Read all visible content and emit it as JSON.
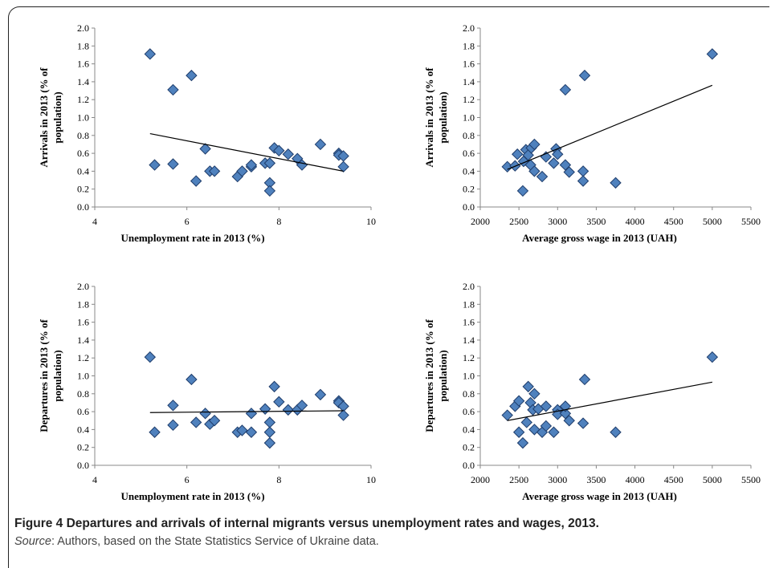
{
  "caption": {
    "figure_label": "Figure 4",
    "title": "Departures and arrivals of internal migrants versus unemployment rates and wages, 2013.",
    "source_label": "Source",
    "source_text": ": Authors, based on the State Statistics Service of Ukraine data."
  },
  "colors": {
    "marker_fill": "#4F81BD",
    "marker_stroke": "#1F3D6B",
    "trend": "#000000"
  },
  "chart_data": [
    {
      "type": "scatter",
      "title": "",
      "xlabel": "Unemployment rate in 2013 (%)",
      "ylabel": "Arrivals in 2013  (% of population)",
      "ylabel_lines": [
        "Arrivals in 2013  (% of",
        "population)"
      ],
      "xlim": [
        4,
        10
      ],
      "ylim": [
        0,
        2
      ],
      "xticks": [
        4,
        6,
        8,
        10
      ],
      "yticks": [
        0.0,
        0.2,
        0.4,
        0.6,
        0.8,
        1.0,
        1.2,
        1.4,
        1.6,
        1.8,
        2.0
      ],
      "grid": false,
      "trendline": {
        "x": [
          5.2,
          9.4
        ],
        "y": [
          0.82,
          0.4
        ]
      },
      "points": [
        [
          5.2,
          1.71
        ],
        [
          5.3,
          0.47
        ],
        [
          5.7,
          1.31
        ],
        [
          5.7,
          0.48
        ],
        [
          6.1,
          1.47
        ],
        [
          6.2,
          0.29
        ],
        [
          6.4,
          0.65
        ],
        [
          6.5,
          0.4
        ],
        [
          6.6,
          0.4
        ],
        [
          7.1,
          0.34
        ],
        [
          7.2,
          0.4
        ],
        [
          7.4,
          0.45
        ],
        [
          7.4,
          0.47
        ],
        [
          7.7,
          0.49
        ],
        [
          7.8,
          0.49
        ],
        [
          7.8,
          0.27
        ],
        [
          7.8,
          0.18
        ],
        [
          7.9,
          0.66
        ],
        [
          8.0,
          0.63
        ],
        [
          8.2,
          0.59
        ],
        [
          8.4,
          0.54
        ],
        [
          8.5,
          0.47
        ],
        [
          8.9,
          0.7
        ],
        [
          9.3,
          0.6
        ],
        [
          9.3,
          0.58
        ],
        [
          9.4,
          0.57
        ],
        [
          9.4,
          0.45
        ]
      ]
    },
    {
      "type": "scatter",
      "title": "",
      "xlabel": "Average gross wage in 2013 (UAH)",
      "ylabel": "Arrivals in 2013  (% of population)",
      "ylabel_lines": [
        "Arrivals in 2013  (% of",
        "population)"
      ],
      "xlim": [
        2000,
        5500
      ],
      "ylim": [
        0,
        2
      ],
      "xticks": [
        2000,
        2500,
        3000,
        3500,
        4000,
        4500,
        5000,
        5500
      ],
      "yticks": [
        0.0,
        0.2,
        0.4,
        0.6,
        0.8,
        1.0,
        1.2,
        1.4,
        1.6,
        1.8,
        2.0
      ],
      "grid": false,
      "trendline": {
        "x": [
          2350,
          5000
        ],
        "y": [
          0.42,
          1.36
        ]
      },
      "points": [
        [
          2350,
          0.45
        ],
        [
          2450,
          0.46
        ],
        [
          2480,
          0.59
        ],
        [
          2550,
          0.18
        ],
        [
          2560,
          0.51
        ],
        [
          2590,
          0.64
        ],
        [
          2620,
          0.58
        ],
        [
          2650,
          0.47
        ],
        [
          2660,
          0.66
        ],
        [
          2700,
          0.7
        ],
        [
          2700,
          0.4
        ],
        [
          2800,
          0.34
        ],
        [
          2850,
          0.56
        ],
        [
          2950,
          0.49
        ],
        [
          2980,
          0.65
        ],
        [
          3000,
          0.59
        ],
        [
          3100,
          0.47
        ],
        [
          3100,
          1.31
        ],
        [
          3150,
          0.39
        ],
        [
          3330,
          0.4
        ],
        [
          3330,
          0.29
        ],
        [
          3350,
          1.47
        ],
        [
          3750,
          0.27
        ],
        [
          5000,
          1.71
        ]
      ]
    },
    {
      "type": "scatter",
      "title": "",
      "xlabel": "Unemployment rate in 2013 (%)",
      "ylabel": "Departures in 2013  (% of population)",
      "ylabel_lines": [
        "Departures in 2013  (% of",
        "population)"
      ],
      "xlim": [
        4,
        10
      ],
      "ylim": [
        0,
        2
      ],
      "xticks": [
        4,
        6,
        8,
        10
      ],
      "yticks": [
        0.0,
        0.2,
        0.4,
        0.6,
        0.8,
        1.0,
        1.2,
        1.4,
        1.6,
        1.8,
        2.0
      ],
      "grid": false,
      "trendline": {
        "x": [
          5.2,
          9.4
        ],
        "y": [
          0.59,
          0.61
        ]
      },
      "points": [
        [
          5.2,
          1.21
        ],
        [
          5.3,
          0.37
        ],
        [
          5.7,
          0.67
        ],
        [
          5.7,
          0.45
        ],
        [
          6.1,
          0.96
        ],
        [
          6.2,
          0.48
        ],
        [
          6.4,
          0.58
        ],
        [
          6.5,
          0.46
        ],
        [
          6.6,
          0.5
        ],
        [
          7.1,
          0.37
        ],
        [
          7.2,
          0.39
        ],
        [
          7.4,
          0.37
        ],
        [
          7.4,
          0.58
        ],
        [
          7.7,
          0.63
        ],
        [
          7.8,
          0.48
        ],
        [
          7.8,
          0.37
        ],
        [
          7.8,
          0.25
        ],
        [
          7.9,
          0.88
        ],
        [
          8.0,
          0.71
        ],
        [
          8.2,
          0.62
        ],
        [
          8.4,
          0.62
        ],
        [
          8.5,
          0.67
        ],
        [
          8.9,
          0.79
        ],
        [
          9.3,
          0.72
        ],
        [
          9.3,
          0.7
        ],
        [
          9.4,
          0.66
        ],
        [
          9.4,
          0.56
        ]
      ]
    },
    {
      "type": "scatter",
      "title": "",
      "xlabel": "Average gross wage in 2013 (UAH)",
      "ylabel": "Departures in 2013  (% of population)",
      "ylabel_lines": [
        "Departures in 2013  (% of",
        "population)"
      ],
      "xlim": [
        2000,
        5500
      ],
      "ylim": [
        0,
        2
      ],
      "xticks": [
        2000,
        2500,
        3000,
        3500,
        4000,
        4500,
        5000,
        5500
      ],
      "yticks": [
        0.0,
        0.2,
        0.4,
        0.6,
        0.8,
        1.0,
        1.2,
        1.4,
        1.6,
        1.8,
        2.0
      ],
      "grid": false,
      "trendline": {
        "x": [
          2350,
          5000
        ],
        "y": [
          0.5,
          0.93
        ]
      },
      "points": [
        [
          2350,
          0.56
        ],
        [
          2450,
          0.66
        ],
        [
          2500,
          0.37
        ],
        [
          2500,
          0.72
        ],
        [
          2550,
          0.25
        ],
        [
          2600,
          0.48
        ],
        [
          2620,
          0.88
        ],
        [
          2650,
          0.7
        ],
        [
          2680,
          0.62
        ],
        [
          2700,
          0.8
        ],
        [
          2700,
          0.4
        ],
        [
          2750,
          0.63
        ],
        [
          2800,
          0.37
        ],
        [
          2850,
          0.44
        ],
        [
          2850,
          0.66
        ],
        [
          2950,
          0.37
        ],
        [
          3000,
          0.62
        ],
        [
          3000,
          0.57
        ],
        [
          3100,
          0.58
        ],
        [
          3100,
          0.66
        ],
        [
          3150,
          0.5
        ],
        [
          3330,
          0.47
        ],
        [
          3350,
          0.96
        ],
        [
          3750,
          0.37
        ],
        [
          5000,
          1.21
        ]
      ]
    }
  ]
}
